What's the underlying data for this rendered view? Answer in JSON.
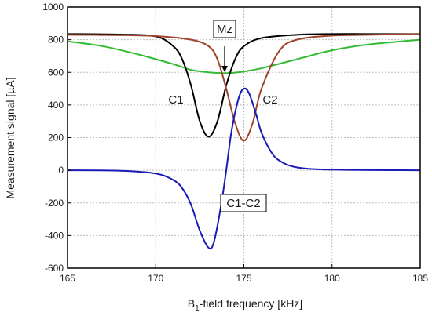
{
  "chart_data": {
    "type": "line",
    "xlabel": {
      "main": "B",
      "sub": "1",
      "rest": "-field frequency [kHz]"
    },
    "ylabel": "Measurement signal [µA]",
    "xlim": [
      165,
      185
    ],
    "ylim": [
      -600,
      1000
    ],
    "xticks": [
      165,
      170,
      175,
      180,
      185
    ],
    "yticks": [
      -600,
      -400,
      -200,
      0,
      200,
      400,
      600,
      800,
      1000
    ],
    "grid": true,
    "series": [
      {
        "name": "C1",
        "color": "#000000",
        "x": [
          165,
          168,
          170,
          171,
          171.5,
          172,
          172.5,
          173,
          173.5,
          174,
          174.5,
          175,
          176,
          178,
          180,
          182,
          185
        ],
        "values": [
          835,
          832,
          820,
          760,
          680,
          520,
          300,
          205,
          300,
          520,
          680,
          760,
          810,
          830,
          835,
          835,
          835
        ]
      },
      {
        "name": "C2",
        "color": "#a0432a",
        "x": [
          165,
          168,
          170,
          172,
          173,
          173.5,
          174,
          174.5,
          175,
          175.5,
          176,
          177,
          178,
          180,
          182,
          185
        ],
        "values": [
          830,
          828,
          822,
          800,
          760,
          680,
          500,
          290,
          180,
          290,
          500,
          730,
          800,
          825,
          830,
          835
        ]
      },
      {
        "name": "Mz",
        "color": "#33bb33",
        "x": [
          165,
          167,
          169,
          171,
          172,
          173,
          174,
          175,
          176,
          178,
          180,
          182,
          185
        ],
        "values": [
          790,
          760,
          710,
          650,
          615,
          600,
          595,
          605,
          625,
          680,
          735,
          770,
          800
        ]
      },
      {
        "name": "C1-C2",
        "color": "#1a1ab8",
        "x": [
          165,
          168,
          170,
          171,
          171.5,
          172,
          172.5,
          173,
          173.3,
          173.7,
          174,
          174.3,
          174.7,
          175,
          175.3,
          175.7,
          176,
          176.5,
          177,
          178,
          180,
          185
        ],
        "values": [
          0,
          -3,
          -20,
          -60,
          -110,
          -210,
          -370,
          -475,
          -440,
          -220,
          0,
          240,
          440,
          500,
          470,
          340,
          230,
          120,
          60,
          18,
          4,
          0
        ]
      }
    ],
    "annotations": [
      {
        "text": "C1",
        "box": false
      },
      {
        "text": "C2",
        "box": false
      },
      {
        "text": "Mz",
        "box": true
      },
      {
        "text": "C1-C2",
        "box": true
      }
    ]
  }
}
